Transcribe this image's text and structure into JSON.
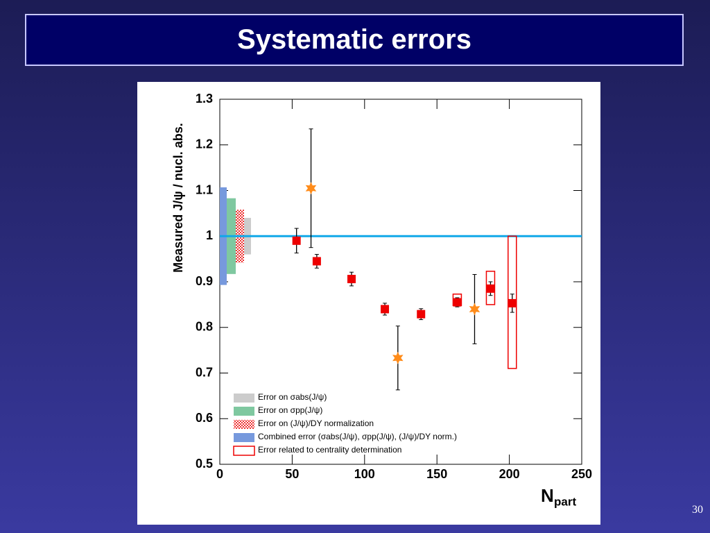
{
  "slide": {
    "title": "Systematic errors",
    "page_number": "30"
  },
  "chart_data": {
    "type": "scatter",
    "y_label": "Measured J/ψ / nucl. abs.",
    "x_label": {
      "main": "N",
      "sub": "part"
    },
    "xlim": [
      0,
      250
    ],
    "ylim": [
      0.5,
      1.3
    ],
    "xticks": [
      0,
      50,
      100,
      150,
      200,
      250
    ],
    "yticks": [
      0.5,
      0.6,
      0.7,
      0.8,
      0.9,
      1,
      1.1,
      1.2,
      1.3
    ],
    "reference_line": 1,
    "reference_color": "#10a8e8",
    "series": [
      {
        "marker": "square",
        "color": "#ee0000",
        "x": [
          53,
          67,
          91,
          114,
          139,
          164,
          187,
          202
        ],
        "values": [
          0.99,
          0.945,
          0.906,
          0.84,
          0.829,
          0.855,
          0.885,
          0.853
        ],
        "errors": [
          0.027,
          0.015,
          0.015,
          0.013,
          0.012,
          0.01,
          0.015,
          0.02
        ]
      },
      {
        "marker": "star",
        "color": "#ff8c1a",
        "x": [
          63,
          123,
          176
        ],
        "values": [
          1.105,
          0.733,
          0.84
        ],
        "errors": [
          0.13,
          0.07,
          0.076
        ]
      }
    ],
    "band_series": [
      {
        "name": "Error on σabs(J/ψ)",
        "color": "#cccccc",
        "values": [
          0.04
        ]
      },
      {
        "name": "Error on σpp(J/ψ)",
        "color": "#7fc8a0",
        "values": [
          0.083
        ]
      },
      {
        "name": "Error on (J/ψ)/DY normalization",
        "color": "#ee3333",
        "pattern": "hatch",
        "values": [
          0.058
        ]
      },
      {
        "name": "Combined error (σabs(J/ψ), σpp(J/ψ), (J/ψ)/DY norm.)",
        "color": "#7799dd",
        "values": [
          0.107
        ]
      }
    ],
    "box_series": {
      "name": "Error related to centrality determination",
      "color": "#ee0000",
      "x": [
        164,
        187,
        202
      ],
      "low": [
        0.848,
        0.85,
        0.71
      ],
      "high": [
        0.873,
        0.923,
        1.0
      ]
    }
  }
}
